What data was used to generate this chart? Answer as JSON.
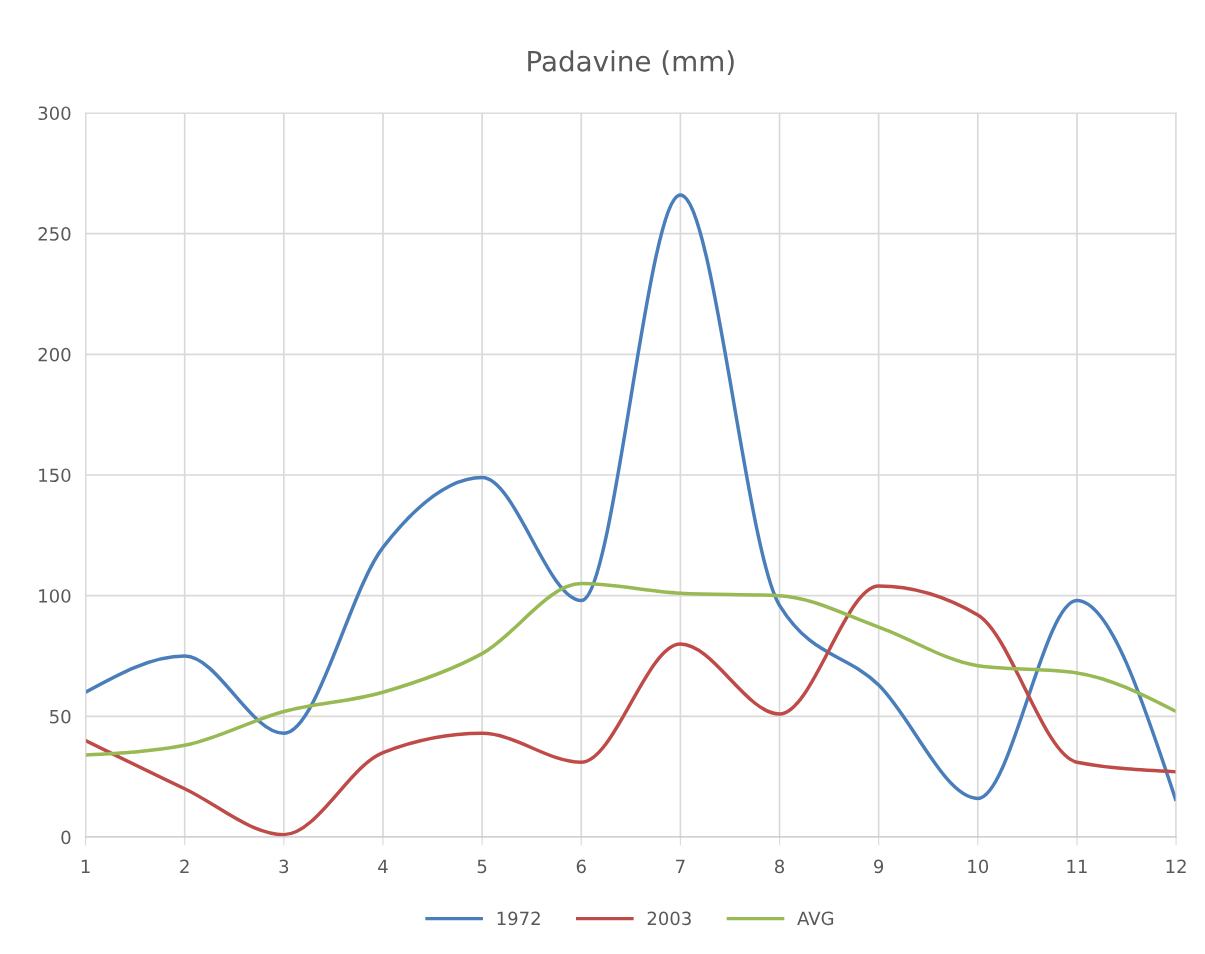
{
  "chart_data": {
    "type": "line",
    "title": "Padavine (mm)",
    "x": [
      1,
      2,
      3,
      4,
      5,
      6,
      7,
      8,
      9,
      10,
      11,
      12
    ],
    "series": [
      {
        "name": "1972",
        "color": "#4a7ebb",
        "values": [
          60,
          75,
          43,
          120,
          149,
          98,
          266,
          96,
          63,
          16,
          98,
          15
        ]
      },
      {
        "name": "2003",
        "color": "#be4b48",
        "values": [
          40,
          20,
          1,
          35,
          43,
          31,
          80,
          51,
          104,
          92,
          31,
          27
        ]
      },
      {
        "name": "AVG",
        "color": "#98b954",
        "values": [
          34,
          38,
          52,
          60,
          76,
          105,
          101,
          100,
          87,
          71,
          68,
          52
        ]
      }
    ],
    "xlim": [
      1,
      12
    ],
    "xticks": [
      1,
      2,
      3,
      4,
      5,
      6,
      7,
      8,
      9,
      10,
      11,
      12
    ],
    "ylim": [
      0,
      300
    ],
    "yticks": [
      0,
      50,
      100,
      150,
      200,
      250,
      300
    ],
    "grid": true,
    "legend": "bottom",
    "marker": "none",
    "line_style": "solid"
  }
}
